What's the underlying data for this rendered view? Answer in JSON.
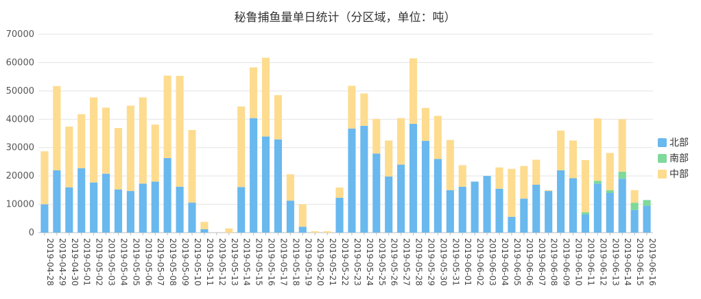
{
  "chart_data": {
    "type": "bar",
    "stacked": true,
    "title": "秘鲁捕鱼量单日统计（分区域，单位：吨）",
    "xlabel": "",
    "ylabel": "",
    "ylim": [
      0,
      70000
    ],
    "yticks": [
      0,
      10000,
      20000,
      30000,
      40000,
      50000,
      60000,
      70000
    ],
    "grid": true,
    "legend_position": "right",
    "categories": [
      "2019-04-28",
      "2019-04-29",
      "2019-04-30",
      "2019-05-01",
      "2019-05-02",
      "2019-05-03",
      "2019-05-04",
      "2019-05-05",
      "2019-05-06",
      "2019-05-07",
      "2019-05-08",
      "2019-05-09",
      "2019-05-10",
      "2019-05-11",
      "2019-05-12",
      "2019-05-13",
      "2019-05-14",
      "2019-05-15",
      "2019-05-16",
      "2019-05-17",
      "2019-05-18",
      "2019-05-19",
      "2019-05-20",
      "2019-05-21",
      "2019-05-22",
      "2019-05-23",
      "2019-05-24",
      "2019-05-25",
      "2019-05-26",
      "2019-05-27",
      "2019-05-28",
      "2019-05-29",
      "2019-05-30",
      "2019-05-31",
      "2019-06-01",
      "2019-06-02",
      "2019-06-03",
      "2019-06-04",
      "2019-06-05",
      "2019-06-06",
      "2019-06-07",
      "2019-06-08",
      "2019-06-09",
      "2019-06-10",
      "2019-06-11",
      "2019-06-12",
      "2019-06-13",
      "2019-06-14",
      "2019-06-15",
      "2019-06-16"
    ],
    "series": [
      {
        "name": "北部",
        "color": "#69b8ee",
        "values": [
          10000,
          22000,
          16000,
          22700,
          17700,
          20800,
          15200,
          14700,
          17300,
          18000,
          26300,
          16200,
          10600,
          1200,
          0,
          0,
          16100,
          40400,
          33900,
          32900,
          11300,
          2100,
          0,
          0,
          12300,
          36700,
          37700,
          27900,
          19800,
          24000,
          38400,
          32400,
          26000,
          15000,
          16200,
          18000,
          20000,
          15500,
          5600,
          12000,
          16900,
          14700,
          22000,
          19200,
          6400,
          17300,
          14000,
          19000,
          8000,
          9500
        ]
      },
      {
        "name": "南部",
        "color": "#7ed99a",
        "values": [
          0,
          0,
          0,
          0,
          0,
          0,
          0,
          0,
          0,
          0,
          0,
          0,
          0,
          0,
          0,
          0,
          0,
          0,
          0,
          0,
          0,
          0,
          0,
          0,
          0,
          0,
          0,
          0,
          0,
          0,
          0,
          0,
          0,
          0,
          0,
          0,
          0,
          0,
          0,
          0,
          0,
          0,
          0,
          0,
          800,
          1000,
          1000,
          2500,
          2500,
          2000
        ]
      },
      {
        "name": "中部",
        "color": "#fddc8f",
        "values": [
          18700,
          29700,
          21400,
          19100,
          30000,
          23300,
          21700,
          30100,
          30400,
          20100,
          29100,
          39100,
          25600,
          2600,
          0,
          1500,
          28400,
          17900,
          27800,
          15600,
          9300,
          7900,
          500,
          500,
          3600,
          15100,
          11400,
          12200,
          12700,
          16400,
          23100,
          11600,
          15200,
          17700,
          7600,
          0,
          0,
          7500,
          16900,
          11500,
          8800,
          300,
          14000,
          13300,
          18400,
          22000,
          13100,
          18500,
          4500,
          0
        ]
      }
    ]
  }
}
